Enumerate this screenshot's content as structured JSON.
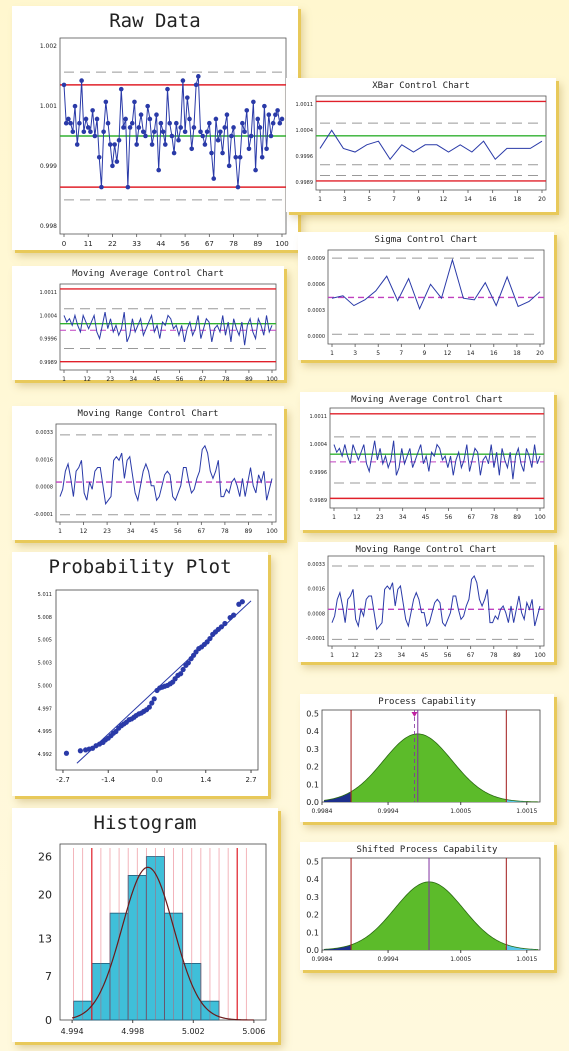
{
  "panels": {
    "raw": {
      "title": "Raw Data"
    },
    "xbar": {
      "title": "XBar Control Chart"
    },
    "sigma": {
      "title": "Sigma Control Chart"
    },
    "ma_left": {
      "title": "Moving Average Control Chart"
    },
    "mr_left": {
      "title": "Moving Range Control Chart"
    },
    "ma_right": {
      "title": "Moving Average Control Chart"
    },
    "mr_right": {
      "title": "Moving Range Control Chart"
    },
    "prob": {
      "title": "Probability Plot"
    },
    "hist": {
      "title": "Histogram"
    },
    "cap": {
      "title": "Process Capability"
    },
    "shift": {
      "title": "Shifted Process Capability"
    }
  },
  "colors": {
    "data": "#2a3aa8",
    "ucl_lcl": "#e0202a",
    "center": "#30b030",
    "mean_dash": "#c040c0",
    "grid_dash": "#999999",
    "fill_green": "#5cbb2a",
    "fill_left": "#1c2f8c",
    "fill_right": "#56c6e8",
    "hist_bar": "#3fbfd9"
  },
  "chart_data": [
    {
      "id": "raw",
      "type": "line",
      "xticks": [
        "0",
        "11",
        "22",
        "33",
        "44",
        "56",
        "67",
        "78",
        "89",
        "100"
      ],
      "yticks": [
        "1.002",
        "1.001",
        "0.999",
        "0.998"
      ],
      "ylim": [
        0.9977,
        1.0023
      ],
      "ucl": 1.0012,
      "lcl": 0.9988,
      "center": 1.0,
      "limits_dashed": [
        1.0015,
        0.9985
      ],
      "values": [
        1.0012,
        1.0003,
        1.0004,
        1.0003,
        1.0001,
        1.0007,
        0.9998,
        1.0003,
        1.0013,
        1.0001,
        1.0004,
        1.0002,
        1.0001,
        1.0006,
        1.0,
        1.0004,
        0.9995,
        0.9988,
        1.0001,
        1.0008,
        1.0003,
        0.9998,
        0.9993,
        0.9998,
        0.9994,
        0.9999,
        1.0011,
        1.0002,
        1.0004,
        0.9988,
        1.0002,
        1.0003,
        1.0008,
        0.9998,
        1.0002,
        1.0005,
        1.0001,
        1.0,
        1.0007,
        1.0004,
        0.9998,
        1.0001,
        1.0005,
        0.9992,
        1.0003,
        1.0001,
        0.9998,
        1.0011,
        1.0003,
        1.0,
        0.9996,
        1.0003,
        0.9999,
        1.0002,
        1.0013,
        1.0001,
        1.0009,
        1.0004,
        0.9997,
        1.0002,
        1.0012,
        1.0014,
        1.0001,
        1.0,
        0.9998,
        1.0001,
        1.0003,
        0.9996,
        0.999,
        1.0004,
        0.9999,
        1.0001,
        0.9996,
        1.0002,
        1.0005,
        0.9993,
        1.0,
        1.0002,
        0.9995,
        0.9988,
        0.9995,
        1.0003,
        1.0001,
        1.0006,
        0.9997,
        1.0,
        1.0008,
        0.9992,
        1.0004,
        1.0002,
        0.9995,
        1.0007,
        0.9997,
        1.0005,
        1.0,
        1.0003,
        1.0005,
        1.0006,
        1.0003,
        1.0004
      ]
    },
    {
      "id": "xbar",
      "type": "line",
      "xticks": [
        "1",
        "3",
        "5",
        "7",
        "9",
        "12",
        "14",
        "16",
        "18",
        "20"
      ],
      "yticks": [
        "1.0011",
        "1.0004",
        "0.9996",
        "0.9989"
      ],
      "ylim": [
        0.99865,
        1.00125
      ],
      "ucl": 1.0011,
      "lcl": 0.9989,
      "center": 1.00015,
      "limits_dashed": [
        1.0005,
        0.99935,
        0.99905
      ],
      "values": [
        0.9998,
        1.0003,
        0.9998,
        0.9997,
        0.9999,
        1.0,
        0.9995,
        0.9999,
        0.9997,
        0.9999,
        0.9999,
        0.9997,
        0.9999,
        0.9997,
        1.0,
        0.9995,
        0.9998,
        0.9998,
        0.9998,
        1.0
      ]
    },
    {
      "id": "sigma",
      "type": "line",
      "xticks": [
        "1",
        "3",
        "5",
        "7",
        "9",
        "12",
        "14",
        "16",
        "18",
        "20"
      ],
      "yticks": [
        "0.0009",
        "0.0006",
        "0.0003",
        "0.0000"
      ],
      "ylim": [
        -0.0001,
        0.00105
      ],
      "center": 0.00047,
      "limits_dashed": [
        0.00095,
        2e-05
      ],
      "values": [
        0.00046,
        0.00049,
        0.00037,
        0.00044,
        0.00055,
        0.00073,
        0.00043,
        0.0007,
        0.00033,
        0.00063,
        0.00046,
        0.00093,
        0.00046,
        0.00044,
        0.00065,
        0.00037,
        0.00072,
        0.00036,
        0.00042,
        0.00054
      ]
    },
    {
      "id": "ma_left",
      "type": "line",
      "xticks": [
        "1",
        "12",
        "23",
        "34",
        "45",
        "56",
        "67",
        "78",
        "89",
        "100"
      ],
      "yticks": [
        "1.0011",
        "1.0004",
        "0.9996",
        "0.9989"
      ],
      "ylim": [
        0.99865,
        1.00125
      ],
      "ucl": 1.0011,
      "lcl": 0.9989,
      "center": 1.00005,
      "mean_line": 0.99985,
      "limits_dashed": [
        1.0005,
        0.9993
      ],
      "values": [
        1.0003,
        1.0001,
        1.0002,
        1.0,
        1.0003,
        1.0,
        0.9998,
        1.0003,
        1.0001,
        0.9999,
        1.0001,
        1.0003,
        0.9998,
        0.9996,
        1.0,
        1.0004,
        0.9999,
        1.0002,
        0.9998,
        1.0,
        0.9997,
        0.9999,
        1.0004,
        0.9995,
        0.9997,
        1.0002,
        0.9998,
        1.0,
        1.0002,
        0.9997,
        0.9999,
        1.0001,
        1.0003,
        0.9998,
        1.0,
        0.9996,
        1.0001,
        1.0,
        1.0003,
        1.0002,
        0.9999,
        1.0,
        0.9997,
        1.0,
        0.9995,
        0.9999,
        1.0001,
        0.9997,
        0.9999,
        1.0003,
        0.9996,
        0.9999,
        1.0002,
        1.0001,
        0.9995,
        0.9999,
        1.0,
        0.9998,
        1.0003,
        0.9997,
        1.0001,
        0.9995,
        1.0002,
        0.9999,
        0.9997,
        1.0001,
        0.9994,
        1.0,
        1.0002,
        0.9998,
        0.9996,
        1.0002,
        1.0,
        0.9997,
        1.0003,
        0.9998,
        1.0
      ]
    },
    {
      "id": "mr_left",
      "type": "line",
      "xticks": [
        "1",
        "12",
        "23",
        "34",
        "45",
        "56",
        "67",
        "78",
        "89",
        "100"
      ],
      "yticks": [
        "0.0033",
        "0.0016",
        "0.0008",
        "-0.0001"
      ],
      "ylim": [
        -0.0003,
        0.0024
      ],
      "center": 0.0008,
      "limits_dashed": [
        0.0021,
        -0.0001
      ],
      "values": [
        0.0004,
        0.0006,
        0.0011,
        0.0013,
        0.0009,
        0.0004,
        0.0011,
        0.0012,
        0.0014,
        0.0005,
        0.0003,
        0.0008,
        0.0006,
        0.0011,
        0.0012,
        0.0012,
        0.0007,
        0.0002,
        0.0003,
        0.0004,
        0.0014,
        0.0015,
        0.0014,
        0.0016,
        0.0009,
        0.0014,
        0.0015,
        0.001,
        0.0005,
        0.0003,
        0.0007,
        0.0011,
        0.0013,
        0.0011,
        0.0007,
        0.0007,
        0.0003,
        0.0004,
        0.0007,
        0.001,
        0.0011,
        0.001,
        0.0004,
        0.0003,
        0.0005,
        0.0007,
        0.0012,
        0.0012,
        0.0008,
        0.0005,
        0.0006,
        0.0009,
        0.0011,
        0.0017,
        0.0018,
        0.0016,
        0.0011,
        0.0009,
        0.0011,
        0.0014,
        0.0004,
        0.0004,
        0.0006,
        0.0005,
        0.0008,
        0.0009,
        0.0007,
        0.0004,
        0.0009,
        0.0004,
        0.0008,
        0.0012,
        0.0007,
        0.0005,
        0.001,
        0.0008,
        0.0011,
        0.0003,
        0.0006,
        0.0009
      ]
    },
    {
      "id": "ma_right",
      "type": "line",
      "xticks": [
        "1",
        "12",
        "23",
        "34",
        "45",
        "56",
        "67",
        "78",
        "89",
        "100"
      ],
      "yticks": [
        "1.0011",
        "1.0004",
        "0.9996",
        "0.9989"
      ],
      "ylim": [
        0.99865,
        1.00125
      ],
      "ucl": 1.0011,
      "lcl": 0.9989,
      "center": 1.00005,
      "mean_line": 0.99985,
      "limits_dashed": [
        1.0005,
        0.9993
      ],
      "values": [
        1.0003,
        1.0001,
        1.0002,
        1.0,
        1.0003,
        1.0,
        0.9998,
        1.0003,
        1.0001,
        0.9999,
        1.0001,
        1.0003,
        0.9998,
        0.9996,
        1.0,
        1.0004,
        0.9999,
        1.0002,
        0.9998,
        1.0,
        0.9997,
        0.9999,
        1.0004,
        0.9995,
        0.9997,
        1.0002,
        0.9998,
        1.0,
        1.0002,
        0.9997,
        0.9999,
        1.0001,
        1.0003,
        0.9998,
        1.0,
        0.9996,
        1.0001,
        1.0,
        1.0003,
        1.0002,
        0.9999,
        1.0,
        0.9997,
        1.0,
        0.9995,
        0.9999,
        1.0001,
        0.9997,
        0.9999,
        1.0003,
        0.9996,
        0.9999,
        1.0002,
        1.0001,
        0.9995,
        0.9999,
        1.0,
        0.9998,
        1.0003,
        0.9997,
        1.0001,
        0.9995,
        1.0002,
        0.9999,
        0.9997,
        1.0001,
        0.9994,
        1.0,
        1.0002,
        0.9998,
        0.9996,
        1.0002,
        1.0,
        0.9997,
        1.0003,
        0.9998,
        1.0
      ]
    },
    {
      "id": "mr_right",
      "type": "line",
      "xticks": [
        "1",
        "12",
        "23",
        "34",
        "45",
        "56",
        "67",
        "78",
        "89",
        "100"
      ],
      "yticks": [
        "0.0033",
        "0.0016",
        "0.0008",
        "-0.0001"
      ],
      "ylim": [
        -0.0003,
        0.0024
      ],
      "center": 0.0008,
      "limits_dashed": [
        0.0021,
        -0.0001
      ],
      "values": [
        0.0004,
        0.0006,
        0.0011,
        0.0013,
        0.0009,
        0.0004,
        0.0011,
        0.0012,
        0.0014,
        0.0005,
        0.0003,
        0.0008,
        0.0006,
        0.0011,
        0.0012,
        0.0012,
        0.0007,
        0.0002,
        0.0003,
        0.0004,
        0.0014,
        0.0015,
        0.0014,
        0.0016,
        0.0009,
        0.0014,
        0.0015,
        0.001,
        0.0005,
        0.0003,
        0.0007,
        0.0011,
        0.0013,
        0.0011,
        0.0007,
        0.0007,
        0.0003,
        0.0004,
        0.0007,
        0.001,
        0.0011,
        0.001,
        0.0004,
        0.0003,
        0.0005,
        0.0007,
        0.0012,
        0.0012,
        0.0008,
        0.0005,
        0.0006,
        0.0009,
        0.0011,
        0.0017,
        0.0018,
        0.0016,
        0.0011,
        0.0009,
        0.0011,
        0.0014,
        0.0004,
        0.0004,
        0.0006,
        0.0005,
        0.0008,
        0.0009,
        0.0007,
        0.0004,
        0.0009,
        0.0004,
        0.0008,
        0.0012,
        0.0007,
        0.0005,
        0.001,
        0.0008,
        0.0011,
        0.0003,
        0.0006,
        0.0009
      ]
    },
    {
      "id": "prob",
      "type": "scatter",
      "xticks": [
        "-2.7",
        "-1.4",
        "0.0",
        "1.4",
        "2.7"
      ],
      "xtick_vals": [
        -2.7,
        -1.4,
        0.0,
        1.4,
        2.7
      ],
      "yticks": [
        "5.011",
        "5.008",
        "5.005",
        "5.003",
        "5.000",
        "4.997",
        "4.995",
        "4.992"
      ],
      "xlim": [
        -2.9,
        2.9
      ],
      "ylim": [
        4.9905,
        5.012
      ],
      "fit_line": [
        [
          -2.3,
          4.9913
        ],
        [
          2.7,
          5.0107
        ]
      ],
      "points": [
        [
          -2.6,
          4.9925
        ],
        [
          -2.2,
          4.9928
        ],
        [
          -2.05,
          4.9929
        ],
        [
          -1.95,
          4.993
        ],
        [
          -1.85,
          4.9931
        ],
        [
          -1.75,
          4.9934
        ],
        [
          -1.65,
          4.9936
        ],
        [
          -1.55,
          4.9938
        ],
        [
          -1.48,
          4.9941
        ],
        [
          -1.4,
          4.9943
        ],
        [
          -1.32,
          4.9946
        ],
        [
          -1.25,
          4.9949
        ],
        [
          -1.18,
          4.9951
        ],
        [
          -1.1,
          4.9955
        ],
        [
          -1.02,
          4.9958
        ],
        [
          -0.95,
          4.996
        ],
        [
          -0.88,
          4.9962
        ],
        [
          -0.8,
          4.9965
        ],
        [
          -0.73,
          4.9966
        ],
        [
          -0.66,
          4.9968
        ],
        [
          -0.6,
          4.997
        ],
        [
          -0.52,
          4.9972
        ],
        [
          -0.45,
          4.9973
        ],
        [
          -0.38,
          4.9975
        ],
        [
          -0.3,
          4.9977
        ],
        [
          -0.22,
          4.998
        ],
        [
          -0.15,
          4.9985
        ],
        [
          -0.08,
          4.999
        ],
        [
          0.0,
          5.0
        ],
        [
          0.08,
          5.0003
        ],
        [
          0.15,
          5.0004
        ],
        [
          0.22,
          5.0005
        ],
        [
          0.3,
          5.0006
        ],
        [
          0.38,
          5.0008
        ],
        [
          0.45,
          5.001
        ],
        [
          0.52,
          5.0014
        ],
        [
          0.6,
          5.0018
        ],
        [
          0.68,
          5.002
        ],
        [
          0.75,
          5.0025
        ],
        [
          0.83,
          5.003
        ],
        [
          0.9,
          5.0033
        ],
        [
          0.98,
          5.0038
        ],
        [
          1.05,
          5.0042
        ],
        [
          1.12,
          5.0046
        ],
        [
          1.2,
          5.005
        ],
        [
          1.28,
          5.0052
        ],
        [
          1.36,
          5.0055
        ],
        [
          1.44,
          5.0058
        ],
        [
          1.52,
          5.0062
        ],
        [
          1.6,
          5.0067
        ],
        [
          1.68,
          5.007
        ],
        [
          1.76,
          5.0073
        ],
        [
          1.85,
          5.0076
        ],
        [
          1.95,
          5.008
        ],
        [
          2.1,
          5.0087
        ],
        [
          2.2,
          5.009
        ],
        [
          2.35,
          5.0103
        ],
        [
          2.45,
          5.0106
        ]
      ]
    },
    {
      "id": "hist",
      "type": "bar",
      "yticks": [
        "26",
        "20",
        "13",
        "7",
        "0"
      ],
      "ytick_vals": [
        26,
        20,
        13,
        7,
        0
      ],
      "xticks": [
        "4.994",
        "4.998",
        "5.002",
        "5.006"
      ],
      "xtick_vals": [
        4.994,
        4.998,
        5.002,
        5.006
      ],
      "xlim": [
        4.9932,
        5.0068
      ],
      "ylim": [
        0,
        28
      ],
      "bins": [
        4.9941,
        4.9947,
        4.9953,
        4.9959,
        4.9965,
        4.9971,
        4.9977,
        4.9983,
        4.9989,
        4.9995,
        5.0001,
        5.0007,
        5.0013,
        5.0019,
        5.0025,
        5.0031,
        5.0037,
        5.0043,
        5.0049,
        5.0055
      ],
      "bars": [
        {
          "from": 4.9941,
          "to": 4.9953,
          "value": 3
        },
        {
          "from": 4.9953,
          "to": 4.9965,
          "value": 9
        },
        {
          "from": 4.9965,
          "to": 4.9977,
          "value": 17
        },
        {
          "from": 4.9977,
          "to": 4.9989,
          "value": 23
        },
        {
          "from": 4.9989,
          "to": 5.0001,
          "value": 26
        },
        {
          "from": 5.0001,
          "to": 5.0013,
          "value": 17
        },
        {
          "from": 5.0013,
          "to": 5.0025,
          "value": 9
        },
        {
          "from": 5.0025,
          "to": 5.0037,
          "value": 3
        }
      ],
      "spec_lines": [
        4.9953,
        5.0049
      ],
      "mean": 4.999,
      "sd": 0.0017,
      "curve_peak": 24.3
    },
    {
      "id": "cap",
      "type": "area",
      "xticks": [
        "0.9984",
        "0.9994",
        "1.0005",
        "1.0015"
      ],
      "xtick_vals": [
        0.9984,
        0.9994,
        1.0005,
        1.0015
      ],
      "yticks": [
        "0.5",
        "0.4",
        "0.3",
        "0.2",
        "0.1",
        "0.0"
      ],
      "ytick_vals": [
        0.5,
        0.4,
        0.3,
        0.2,
        0.1,
        0.0
      ],
      "xlim": [
        0.9984,
        1.0017
      ],
      "ylim": [
        0,
        0.52
      ],
      "mean": 0.99985,
      "sd": 0.00052,
      "peak": 0.385,
      "lsl": 0.99884,
      "usl": 1.00119,
      "target": 0.99985,
      "mean_marker": 0.9998
    },
    {
      "id": "shift",
      "type": "area",
      "xticks": [
        "0.9984",
        "0.9994",
        "1.0005",
        "1.0015"
      ],
      "xtick_vals": [
        0.9984,
        0.9994,
        1.0005,
        1.0015
      ],
      "yticks": [
        "0.5",
        "0.4",
        "0.3",
        "0.2",
        "0.1",
        "0.0"
      ],
      "ytick_vals": [
        0.5,
        0.4,
        0.3,
        0.2,
        0.1,
        0.0
      ],
      "xlim": [
        0.9984,
        1.0017
      ],
      "ylim": [
        0,
        0.52
      ],
      "mean": 1.00002,
      "sd": 0.00052,
      "peak": 0.385,
      "lsl": 0.99884,
      "usl": 1.00119,
      "target": 1.00002
    }
  ]
}
